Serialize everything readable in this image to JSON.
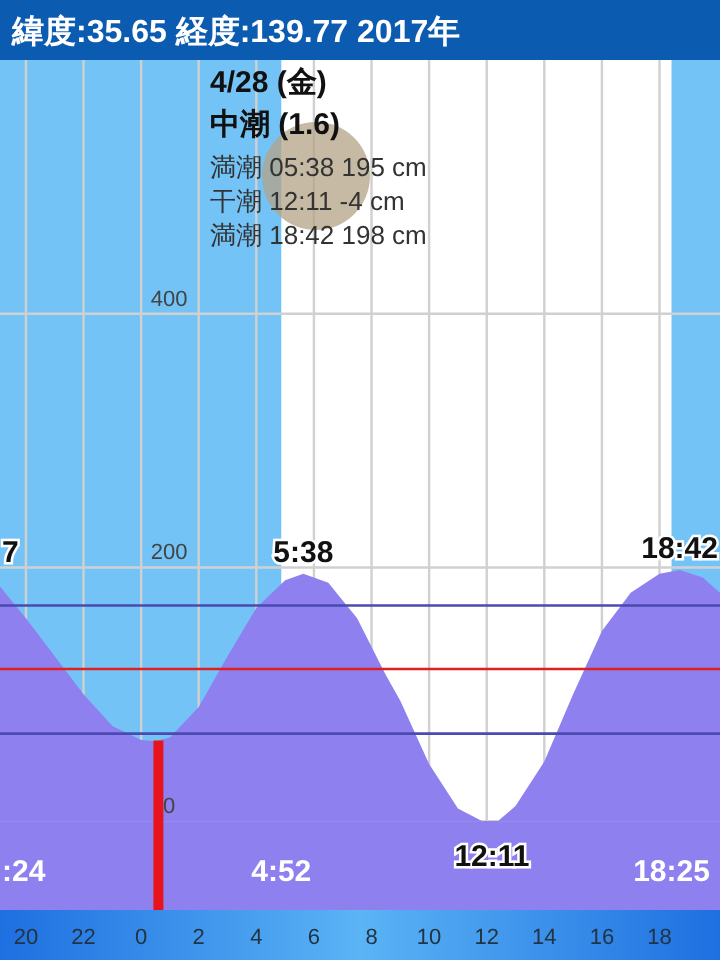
{
  "chart_data": {
    "type": "area",
    "title": "緯度:35.65 経度:139.77  2017年",
    "subtitle": "4/28 (金)",
    "x": [
      "2017-04-27T19:06",
      "2017-04-27T20:00",
      "2017-04-27T21:00",
      "2017-04-27T22:00",
      "2017-04-27T23:00",
      "2017-04-28T00:00",
      "2017-04-28T00:30",
      "2017-04-28T01:00",
      "2017-04-28T02:00",
      "2017-04-28T03:00",
      "2017-04-28T04:00",
      "2017-04-28T05:00",
      "2017-04-28T05:38",
      "2017-04-28T06:30",
      "2017-04-28T07:30",
      "2017-04-28T08:30",
      "2017-04-28T09:00",
      "2017-04-28T10:00",
      "2017-04-28T11:00",
      "2017-04-28T12:11",
      "2017-04-28T13:00",
      "2017-04-28T14:00",
      "2017-04-28T15:00",
      "2017-04-28T16:00",
      "2017-04-28T17:00",
      "2017-04-28T18:00",
      "2017-04-28T18:42",
      "2017-04-28T19:30",
      "2017-04-28T20:06"
    ],
    "series": [
      {
        "color": "#8e80ee",
        "values": [
          185,
          160,
          130,
          100,
          75,
          64,
          63,
          66,
          90,
          130,
          168,
          190,
          195,
          188,
          160,
          115,
          95,
          45,
          10,
          -4,
          12,
          47,
          100,
          150,
          180,
          195,
          198,
          192,
          180
        ]
      }
    ],
    "xlim": [
      "2017-04-27T19:06",
      "2017-04-28T20:06"
    ],
    "ylim": [
      -70,
      600
    ],
    "xticks": [
      {
        "value": "2017-04-27T20:00",
        "label": "20"
      },
      {
        "value": "2017-04-27T22:00",
        "label": "22"
      },
      {
        "value": "2017-04-28T00:00",
        "label": "0"
      },
      {
        "value": "2017-04-28T02:00",
        "label": "2"
      },
      {
        "value": "2017-04-28T04:00",
        "label": "4"
      },
      {
        "value": "2017-04-28T06:00",
        "label": "6"
      },
      {
        "value": "2017-04-28T08:00",
        "label": "8"
      },
      {
        "value": "2017-04-28T10:00",
        "label": "10"
      },
      {
        "value": "2017-04-28T12:00",
        "label": "12"
      },
      {
        "value": "2017-04-28T14:00",
        "label": "14"
      },
      {
        "value": "2017-04-28T16:00",
        "label": "16"
      },
      {
        "value": "2017-04-28T18:00",
        "label": "18"
      }
    ],
    "yticks": [
      0,
      200,
      400
    ],
    "grid": true,
    "ref_lines": [
      {
        "axis": "y",
        "value": 170,
        "color": "#4a4ab0"
      },
      {
        "axis": "y",
        "value": 120,
        "color": "#e02020"
      },
      {
        "axis": "y",
        "value": 69,
        "color": "#4a4ab0"
      },
      {
        "axis": "x",
        "value": "2017-04-28T00:36",
        "color": "#e8141c"
      }
    ],
    "bands": [
      {
        "axis": "x",
        "from": "2017-04-27T19:06",
        "to": "2017-04-28T04:52",
        "color": "#5ab8f5"
      },
      {
        "axis": "x",
        "from": "2017-04-28T18:25",
        "to": "2017-04-28T20:06",
        "color": "#5ab8f5"
      }
    ],
    "annotations": [
      "中潮 (1.6)",
      "満潮 05:38 195 cm",
      "干潮 12:11  -4 cm",
      "満潮 18:42 198 cm",
      {
        "text": "7",
        "x": "2017-04-27T19:06",
        "y": 195
      },
      {
        "text": "5:38",
        "x": "2017-04-28T05:38",
        "y": 195
      },
      {
        "text": "12:11",
        "x": "2017-04-28T12:11",
        "y": -4
      },
      {
        "text": "18:42",
        "x": "2017-04-28T18:42",
        "y": 198
      },
      {
        "text": ":24",
        "x": "2017-04-27T19:06",
        "y": -50
      },
      {
        "text": "4:52",
        "x": "2017-04-28T04:52",
        "y": -50
      },
      {
        "text": "18:25",
        "x": "2017-04-28T18:25",
        "y": -50
      }
    ]
  }
}
